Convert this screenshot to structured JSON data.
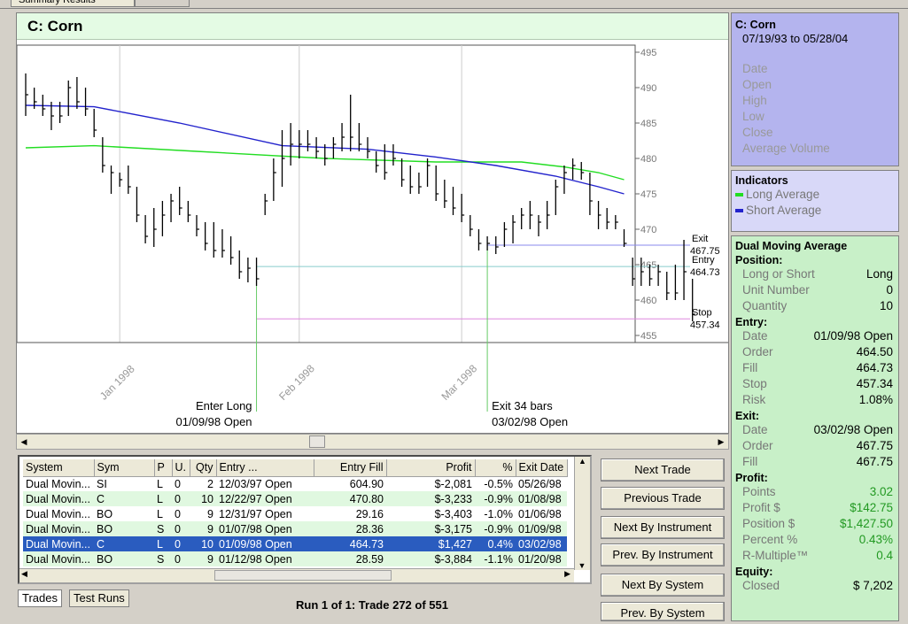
{
  "window": {
    "tab_summary": "Summary Results"
  },
  "chart_title": "C: Corn",
  "chart_data": {
    "type": "ohlc",
    "ylim": [
      454,
      496
    ],
    "yticks": [
      455,
      460,
      465,
      470,
      475,
      480,
      485,
      490,
      495
    ],
    "xticks": [
      {
        "label": "Jan 1998",
        "bar": 11
      },
      {
        "label": "Feb 1998",
        "bar": 32
      },
      {
        "label": "Mar 1998",
        "bar": 51
      }
    ],
    "bars": [
      {
        "h": 492,
        "l": 486,
        "c": 489
      },
      {
        "h": 490,
        "l": 487,
        "c": 488
      },
      {
        "h": 489,
        "l": 486,
        "c": 487
      },
      {
        "h": 488,
        "l": 484,
        "c": 486
      },
      {
        "h": 488,
        "l": 485,
        "c": 486
      },
      {
        "h": 491,
        "l": 486,
        "c": 490
      },
      {
        "h": 491.5,
        "l": 487,
        "c": 488
      },
      {
        "h": 490,
        "l": 486,
        "c": 487
      },
      {
        "h": 487,
        "l": 483,
        "c": 484
      },
      {
        "h": 483,
        "l": 478,
        "c": 479
      },
      {
        "h": 479,
        "l": 475,
        "c": 478
      },
      {
        "h": 478,
        "l": 476,
        "c": 477
      },
      {
        "h": 479,
        "l": 475,
        "c": 476
      },
      {
        "h": 476,
        "l": 471,
        "c": 472
      },
      {
        "h": 472,
        "l": 468,
        "c": 469
      },
      {
        "h": 473,
        "l": 467.5,
        "c": 470
      },
      {
        "h": 474,
        "l": 469,
        "c": 472
      },
      {
        "h": 475,
        "l": 471,
        "c": 474
      },
      {
        "h": 476,
        "l": 472,
        "c": 473
      },
      {
        "h": 474,
        "l": 471,
        "c": 472
      },
      {
        "h": 472,
        "l": 469,
        "c": 470
      },
      {
        "h": 471,
        "l": 467,
        "c": 468
      },
      {
        "h": 471,
        "l": 466,
        "c": 467
      },
      {
        "h": 470,
        "l": 466,
        "c": 467
      },
      {
        "h": 469,
        "l": 465,
        "c": 466
      },
      {
        "h": 467,
        "l": 463,
        "c": 464
      },
      {
        "h": 466,
        "l": 462.5,
        "c": 464.5
      },
      {
        "h": 466,
        "l": 462,
        "c": 463
      },
      {
        "h": 475,
        "l": 472,
        "c": 474
      },
      {
        "h": 480,
        "l": 474,
        "c": 478
      },
      {
        "h": 484,
        "l": 476,
        "c": 480
      },
      {
        "h": 485,
        "l": 479,
        "c": 482
      },
      {
        "h": 484,
        "l": 480,
        "c": 482
      },
      {
        "h": 484,
        "l": 481,
        "c": 482
      },
      {
        "h": 483,
        "l": 480,
        "c": 481
      },
      {
        "h": 482,
        "l": 479,
        "c": 480
      },
      {
        "h": 483,
        "l": 480,
        "c": 482
      },
      {
        "h": 485,
        "l": 481,
        "c": 483
      },
      {
        "h": 489,
        "l": 481,
        "c": 483
      },
      {
        "h": 485,
        "l": 481,
        "c": 482
      },
      {
        "h": 483,
        "l": 480,
        "c": 481
      },
      {
        "h": 481,
        "l": 478,
        "c": 479
      },
      {
        "h": 482,
        "l": 477,
        "c": 478
      },
      {
        "h": 482,
        "l": 479,
        "c": 480
      },
      {
        "h": 480,
        "l": 476,
        "c": 477
      },
      {
        "h": 479,
        "l": 475,
        "c": 476
      },
      {
        "h": 478,
        "l": 475,
        "c": 476
      },
      {
        "h": 480,
        "l": 476,
        "c": 479
      },
      {
        "h": 479,
        "l": 474,
        "c": 475
      },
      {
        "h": 477,
        "l": 473,
        "c": 474
      },
      {
        "h": 476,
        "l": 472,
        "c": 473
      },
      {
        "h": 475,
        "l": 471,
        "c": 472
      },
      {
        "h": 472,
        "l": 469,
        "c": 470
      },
      {
        "h": 470,
        "l": 467,
        "c": 468
      },
      {
        "h": 469,
        "l": 467,
        "c": 468
      },
      {
        "h": 469,
        "l": 466.5,
        "c": 467.5
      },
      {
        "h": 471,
        "l": 467.5,
        "c": 470
      },
      {
        "h": 472,
        "l": 468,
        "c": 471
      },
      {
        "h": 473,
        "l": 470,
        "c": 472
      },
      {
        "h": 474,
        "l": 470,
        "c": 472
      },
      {
        "h": 472,
        "l": 469,
        "c": 471
      },
      {
        "h": 474,
        "l": 470,
        "c": 472
      },
      {
        "h": 477,
        "l": 472,
        "c": 476
      },
      {
        "h": 479,
        "l": 475,
        "c": 478
      },
      {
        "h": 480,
        "l": 477,
        "c": 479
      },
      {
        "h": 479.5,
        "l": 477,
        "c": 478
      },
      {
        "h": 478,
        "l": 472,
        "c": 474
      },
      {
        "h": 474,
        "l": 470,
        "c": 472
      },
      {
        "h": 473,
        "l": 470,
        "c": 471
      },
      {
        "h": 472,
        "l": 470,
        "c": 471
      },
      {
        "h": 470,
        "l": 467.5,
        "c": 468
      },
      {
        "h": 466,
        "l": 462,
        "c": 463
      },
      {
        "h": 466,
        "l": 462,
        "c": 464
      },
      {
        "h": 465,
        "l": 462,
        "c": 463
      },
      {
        "h": 465,
        "l": 462,
        "c": 464
      },
      {
        "h": 464,
        "l": 460,
        "c": 461
      },
      {
        "h": 465,
        "l": 460,
        "c": 461
      },
      {
        "h": 468.5,
        "l": 460,
        "c": 464
      },
      {
        "h": 463,
        "l": 457,
        "c": 458
      }
    ],
    "series": [
      {
        "name": "Long Average",
        "color": "#22dd22",
        "x": [
          0,
          8,
          20,
          35,
          48,
          58,
          63,
          67,
          70
        ],
        "y": [
          481.5,
          481.8,
          481,
          480,
          479.5,
          479.5,
          478.8,
          478,
          477
        ]
      },
      {
        "name": "Short Average",
        "color": "#2222cc",
        "x": [
          0,
          8,
          18,
          30,
          40,
          48,
          55,
          62,
          67,
          70
        ],
        "y": [
          487.5,
          487.3,
          485,
          481.8,
          481.3,
          480.2,
          479,
          477.5,
          476,
          475
        ]
      }
    ],
    "levels": [
      {
        "name": "Exit",
        "value": 467.75,
        "label": "Exit",
        "value_label": "467.75",
        "color": "#8888ee",
        "start_bar": 54
      },
      {
        "name": "Entry",
        "value": 464.73,
        "label": "Entry",
        "value_label": "464.73",
        "color": "#88cccc",
        "start_bar": 27
      },
      {
        "name": "Stop",
        "value": 457.34,
        "label": "Stop",
        "value_label": "457.34",
        "color": "#dd88dd",
        "start_bar": 27
      }
    ],
    "annotations": [
      {
        "bar": 27,
        "line1": "Enter Long",
        "line2": "01/09/98 Open"
      },
      {
        "bar": 54,
        "line1": "Exit 34 bars",
        "line2": "03/02/98 Open"
      }
    ]
  },
  "info": {
    "header": {
      "title": "C: Corn",
      "date_range": "07/19/93 to 05/28/04",
      "fields": [
        "Date",
        "Open",
        "High",
        "Low",
        "Close",
        "Average Volume"
      ]
    },
    "indicators": {
      "title": "Indicators",
      "items": [
        {
          "label": "Long Average",
          "color": "#22dd22"
        },
        {
          "label": "Short Average",
          "color": "#2222cc"
        }
      ]
    },
    "system": "Dual Moving Average",
    "position": {
      "title": "Position:",
      "rows": [
        {
          "k": "Long or Short",
          "v": "Long"
        },
        {
          "k": "Unit Number",
          "v": "0"
        },
        {
          "k": "Quantity",
          "v": "10"
        }
      ]
    },
    "entry": {
      "title": "Entry:",
      "rows": [
        {
          "k": "Date",
          "v": "01/09/98 Open"
        },
        {
          "k": "Order",
          "v": "464.50"
        },
        {
          "k": "Fill",
          "v": "464.73"
        },
        {
          "k": "Stop",
          "v": "457.34"
        },
        {
          "k": "Risk",
          "v": "1.08%"
        }
      ]
    },
    "exit": {
      "title": "Exit:",
      "rows": [
        {
          "k": "Date",
          "v": "03/02/98 Open"
        },
        {
          "k": "Order",
          "v": "467.75"
        },
        {
          "k": "Fill",
          "v": "467.75"
        }
      ]
    },
    "profit": {
      "title": "Profit:",
      "rows": [
        {
          "k": "Points",
          "v": "3.02"
        },
        {
          "k": "Profit $",
          "v": "$142.75"
        },
        {
          "k": "Position $",
          "v": "$1,427.50"
        },
        {
          "k": "Percent %",
          "v": "0.43%"
        },
        {
          "k": "R-Multiple™",
          "v": "0.4"
        }
      ]
    },
    "equity": {
      "title": "Equity:",
      "rows": [
        {
          "k": "Closed",
          "v": "$ 7,202"
        }
      ]
    }
  },
  "table": {
    "columns": [
      "System",
      "Sym",
      "P",
      "U.",
      "Qty",
      "Entry ...",
      "Entry Fill",
      "Profit",
      "%",
      "Exit Date"
    ],
    "rows": [
      [
        "Dual Movin...",
        "SI",
        "L",
        "0",
        "2",
        "12/03/97 Open",
        "604.90",
        "$-2,081",
        "-0.5%",
        "05/26/98"
      ],
      [
        "Dual Movin...",
        "C",
        "L",
        "0",
        "10",
        "12/22/97 Open",
        "470.80",
        "$-3,233",
        "-0.9%",
        "01/08/98"
      ],
      [
        "Dual Movin...",
        "BO",
        "L",
        "0",
        "9",
        "12/31/97 Open",
        "29.16",
        "$-3,403",
        "-1.0%",
        "01/06/98"
      ],
      [
        "Dual Movin...",
        "BO",
        "S",
        "0",
        "9",
        "01/07/98 Open",
        "28.36",
        "$-3,175",
        "-0.9%",
        "01/09/98"
      ],
      [
        "Dual Movin...",
        "C",
        "L",
        "0",
        "10",
        "01/09/98 Open",
        "464.73",
        "$1,427",
        "0.4%",
        "03/02/98"
      ],
      [
        "Dual Movin...",
        "BO",
        "S",
        "0",
        "9",
        "01/12/98 Open",
        "28.59",
        "$-3,884",
        "-1.1%",
        "01/20/98"
      ]
    ],
    "selected_row": 4
  },
  "buttons": {
    "next_trade": "Next Trade",
    "previous_trade": "Previous Trade",
    "next_by_instrument": "Next By Instrument",
    "prev_by_instrument": "Prev. By Instrument",
    "next_by_system": "Next By System",
    "prev_by_system": "Prev. By System"
  },
  "tabs": {
    "trades": "Trades",
    "test_runs": "Test Runs"
  },
  "status": "Run 1 of 1: Trade 272 of 551"
}
